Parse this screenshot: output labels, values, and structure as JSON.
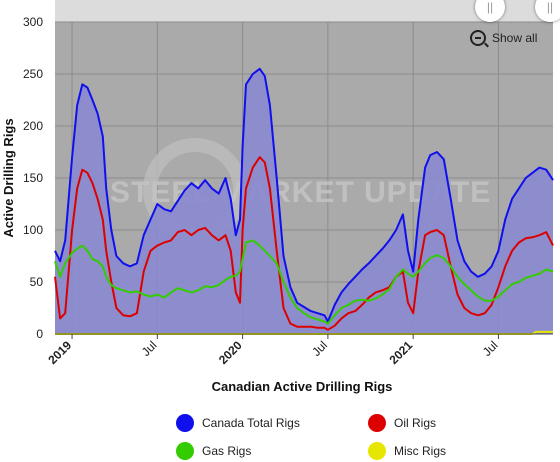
{
  "chart_data": {
    "type": "area",
    "xlabel": "Canadian Active Drilling Rigs",
    "ylabel": "Active Drilling Rigs",
    "ylim": [
      0,
      300
    ],
    "yticks": [
      0,
      50,
      100,
      150,
      200,
      250,
      300
    ],
    "xlim": [
      2018.9,
      2021.82
    ],
    "xticks": [
      {
        "x": 2019.0,
        "label": "2019",
        "major": true
      },
      {
        "x": 2019.5,
        "label": "Jul",
        "major": false
      },
      {
        "x": 2020.0,
        "label": "2020",
        "major": true
      },
      {
        "x": 2020.5,
        "label": "Jul",
        "major": false
      },
      {
        "x": 2021.0,
        "label": "2021",
        "major": true
      },
      {
        "x": 2021.5,
        "label": "Jul",
        "major": false
      }
    ],
    "grid": true,
    "legend_position": "bottom",
    "series": [
      {
        "name": "Canada Total Rigs",
        "color": "#1010ee",
        "fill": "#8a8ad0",
        "points": [
          [
            2018.9,
            80
          ],
          [
            2018.93,
            70
          ],
          [
            2018.96,
            90
          ],
          [
            2019.0,
            170
          ],
          [
            2019.03,
            220
          ],
          [
            2019.06,
            240
          ],
          [
            2019.09,
            237
          ],
          [
            2019.12,
            225
          ],
          [
            2019.15,
            212
          ],
          [
            2019.18,
            190
          ],
          [
            2019.2,
            140
          ],
          [
            2019.23,
            100
          ],
          [
            2019.26,
            75
          ],
          [
            2019.3,
            68
          ],
          [
            2019.34,
            65
          ],
          [
            2019.38,
            68
          ],
          [
            2019.42,
            95
          ],
          [
            2019.46,
            110
          ],
          [
            2019.5,
            125
          ],
          [
            2019.54,
            120
          ],
          [
            2019.58,
            118
          ],
          [
            2019.62,
            128
          ],
          [
            2019.66,
            138
          ],
          [
            2019.7,
            145
          ],
          [
            2019.74,
            140
          ],
          [
            2019.78,
            148
          ],
          [
            2019.82,
            140
          ],
          [
            2019.86,
            135
          ],
          [
            2019.9,
            150
          ],
          [
            2019.93,
            130
          ],
          [
            2019.96,
            95
          ],
          [
            2019.985,
            110
          ],
          [
            2020.0,
            180
          ],
          [
            2020.02,
            240
          ],
          [
            2020.06,
            250
          ],
          [
            2020.1,
            255
          ],
          [
            2020.13,
            248
          ],
          [
            2020.16,
            220
          ],
          [
            2020.2,
            150
          ],
          [
            2020.24,
            75
          ],
          [
            2020.28,
            45
          ],
          [
            2020.32,
            30
          ],
          [
            2020.36,
            26
          ],
          [
            2020.4,
            22
          ],
          [
            2020.44,
            20
          ],
          [
            2020.48,
            18
          ],
          [
            2020.5,
            12
          ],
          [
            2020.54,
            28
          ],
          [
            2020.58,
            40
          ],
          [
            2020.62,
            48
          ],
          [
            2020.66,
            55
          ],
          [
            2020.7,
            62
          ],
          [
            2020.74,
            68
          ],
          [
            2020.78,
            75
          ],
          [
            2020.82,
            82
          ],
          [
            2020.86,
            90
          ],
          [
            2020.9,
            100
          ],
          [
            2020.94,
            115
          ],
          [
            2020.97,
            80
          ],
          [
            2021.0,
            60
          ],
          [
            2021.03,
            110
          ],
          [
            2021.07,
            160
          ],
          [
            2021.1,
            172
          ],
          [
            2021.14,
            175
          ],
          [
            2021.18,
            168
          ],
          [
            2021.22,
            130
          ],
          [
            2021.26,
            90
          ],
          [
            2021.3,
            70
          ],
          [
            2021.34,
            60
          ],
          [
            2021.38,
            55
          ],
          [
            2021.42,
            58
          ],
          [
            2021.46,
            65
          ],
          [
            2021.5,
            80
          ],
          [
            2021.54,
            110
          ],
          [
            2021.58,
            130
          ],
          [
            2021.62,
            140
          ],
          [
            2021.66,
            150
          ],
          [
            2021.7,
            155
          ],
          [
            2021.74,
            160
          ],
          [
            2021.78,
            158
          ],
          [
            2021.82,
            148
          ]
        ]
      },
      {
        "name": "Oil Rigs",
        "color": "#dd0000",
        "fill": "none",
        "points": [
          [
            2018.9,
            55
          ],
          [
            2018.93,
            15
          ],
          [
            2018.96,
            20
          ],
          [
            2019.0,
            100
          ],
          [
            2019.03,
            140
          ],
          [
            2019.06,
            158
          ],
          [
            2019.09,
            155
          ],
          [
            2019.12,
            145
          ],
          [
            2019.15,
            130
          ],
          [
            2019.18,
            110
          ],
          [
            2019.2,
            80
          ],
          [
            2019.23,
            50
          ],
          [
            2019.26,
            25
          ],
          [
            2019.3,
            18
          ],
          [
            2019.34,
            17
          ],
          [
            2019.38,
            20
          ],
          [
            2019.42,
            60
          ],
          [
            2019.46,
            80
          ],
          [
            2019.5,
            85
          ],
          [
            2019.54,
            88
          ],
          [
            2019.58,
            90
          ],
          [
            2019.62,
            98
          ],
          [
            2019.66,
            100
          ],
          [
            2019.7,
            95
          ],
          [
            2019.74,
            100
          ],
          [
            2019.78,
            102
          ],
          [
            2019.82,
            95
          ],
          [
            2019.86,
            90
          ],
          [
            2019.9,
            95
          ],
          [
            2019.93,
            80
          ],
          [
            2019.96,
            40
          ],
          [
            2019.985,
            30
          ],
          [
            2020.0,
            100
          ],
          [
            2020.02,
            140
          ],
          [
            2020.06,
            160
          ],
          [
            2020.1,
            170
          ],
          [
            2020.13,
            165
          ],
          [
            2020.16,
            140
          ],
          [
            2020.2,
            80
          ],
          [
            2020.24,
            25
          ],
          [
            2020.28,
            10
          ],
          [
            2020.32,
            7
          ],
          [
            2020.36,
            7
          ],
          [
            2020.4,
            7
          ],
          [
            2020.44,
            6
          ],
          [
            2020.48,
            6
          ],
          [
            2020.5,
            4
          ],
          [
            2020.54,
            8
          ],
          [
            2020.58,
            15
          ],
          [
            2020.62,
            20
          ],
          [
            2020.66,
            22
          ],
          [
            2020.7,
            28
          ],
          [
            2020.74,
            35
          ],
          [
            2020.78,
            40
          ],
          [
            2020.82,
            42
          ],
          [
            2020.86,
            45
          ],
          [
            2020.9,
            55
          ],
          [
            2020.94,
            60
          ],
          [
            2020.97,
            30
          ],
          [
            2021.0,
            20
          ],
          [
            2021.03,
            60
          ],
          [
            2021.07,
            95
          ],
          [
            2021.1,
            98
          ],
          [
            2021.14,
            100
          ],
          [
            2021.18,
            95
          ],
          [
            2021.22,
            65
          ],
          [
            2021.26,
            38
          ],
          [
            2021.3,
            25
          ],
          [
            2021.34,
            20
          ],
          [
            2021.38,
            18
          ],
          [
            2021.42,
            20
          ],
          [
            2021.46,
            28
          ],
          [
            2021.5,
            45
          ],
          [
            2021.54,
            65
          ],
          [
            2021.58,
            80
          ],
          [
            2021.62,
            88
          ],
          [
            2021.66,
            92
          ],
          [
            2021.7,
            93
          ],
          [
            2021.74,
            95
          ],
          [
            2021.78,
            98
          ],
          [
            2021.82,
            85
          ]
        ]
      },
      {
        "name": "Gas Rigs",
        "color": "#33cc00",
        "fill": "none",
        "points": [
          [
            2018.9,
            70
          ],
          [
            2018.93,
            55
          ],
          [
            2018.96,
            68
          ],
          [
            2019.0,
            78
          ],
          [
            2019.03,
            82
          ],
          [
            2019.06,
            85
          ],
          [
            2019.09,
            80
          ],
          [
            2019.12,
            72
          ],
          [
            2019.15,
            70
          ],
          [
            2019.18,
            65
          ],
          [
            2019.2,
            55
          ],
          [
            2019.23,
            47
          ],
          [
            2019.26,
            44
          ],
          [
            2019.3,
            42
          ],
          [
            2019.34,
            40
          ],
          [
            2019.38,
            41
          ],
          [
            2019.42,
            38
          ],
          [
            2019.46,
            36
          ],
          [
            2019.5,
            38
          ],
          [
            2019.54,
            35
          ],
          [
            2019.58,
            40
          ],
          [
            2019.62,
            44
          ],
          [
            2019.66,
            42
          ],
          [
            2019.7,
            40
          ],
          [
            2019.74,
            42
          ],
          [
            2019.78,
            46
          ],
          [
            2019.82,
            45
          ],
          [
            2019.86,
            47
          ],
          [
            2019.9,
            52
          ],
          [
            2019.93,
            55
          ],
          [
            2019.96,
            56
          ],
          [
            2019.985,
            60
          ],
          [
            2020.0,
            72
          ],
          [
            2020.02,
            88
          ],
          [
            2020.06,
            90
          ],
          [
            2020.1,
            85
          ],
          [
            2020.13,
            80
          ],
          [
            2020.16,
            75
          ],
          [
            2020.2,
            68
          ],
          [
            2020.24,
            50
          ],
          [
            2020.28,
            35
          ],
          [
            2020.32,
            25
          ],
          [
            2020.36,
            20
          ],
          [
            2020.4,
            16
          ],
          [
            2020.44,
            14
          ],
          [
            2020.48,
            12
          ],
          [
            2020.5,
            10
          ],
          [
            2020.54,
            18
          ],
          [
            2020.58,
            25
          ],
          [
            2020.62,
            28
          ],
          [
            2020.66,
            32
          ],
          [
            2020.7,
            33
          ],
          [
            2020.74,
            32
          ],
          [
            2020.78,
            34
          ],
          [
            2020.82,
            38
          ],
          [
            2020.86,
            43
          ],
          [
            2020.9,
            55
          ],
          [
            2020.94,
            62
          ],
          [
            2020.97,
            58
          ],
          [
            2021.0,
            55
          ],
          [
            2021.03,
            60
          ],
          [
            2021.07,
            68
          ],
          [
            2021.1,
            73
          ],
          [
            2021.14,
            76
          ],
          [
            2021.18,
            73
          ],
          [
            2021.22,
            65
          ],
          [
            2021.26,
            55
          ],
          [
            2021.3,
            48
          ],
          [
            2021.34,
            42
          ],
          [
            2021.38,
            36
          ],
          [
            2021.42,
            32
          ],
          [
            2021.46,
            32
          ],
          [
            2021.5,
            36
          ],
          [
            2021.54,
            42
          ],
          [
            2021.58,
            48
          ],
          [
            2021.62,
            50
          ],
          [
            2021.66,
            54
          ],
          [
            2021.7,
            56
          ],
          [
            2021.74,
            58
          ],
          [
            2021.78,
            62
          ],
          [
            2021.82,
            60
          ]
        ]
      },
      {
        "name": "Misc Rigs",
        "color": "#e6e600",
        "fill": "none",
        "points": [
          [
            2018.9,
            0
          ],
          [
            2021.7,
            0
          ],
          [
            2021.72,
            2
          ],
          [
            2021.82,
            2
          ]
        ]
      }
    ]
  },
  "controls": {
    "show_all_label": "Show all"
  },
  "watermark": {
    "text": "STEEL MARKET UPDATE"
  },
  "colors": {
    "plot_background": "#aaaaaa",
    "navigator_background": "#dcdcdc"
  }
}
